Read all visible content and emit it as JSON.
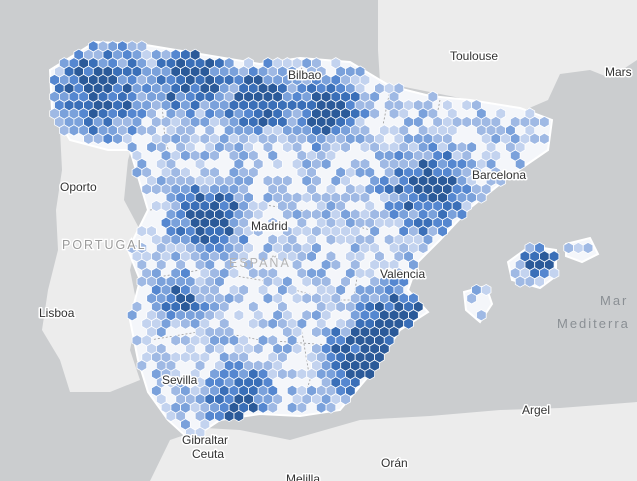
{
  "map": {
    "colors": {
      "water": "#cbcdcf",
      "land": "#ececec",
      "spain_base": "#f4f6fa",
      "border": "#9a9a9a",
      "hex_scale": [
        "#e8eef9",
        "#c3d3ef",
        "#9fb9e4",
        "#7aa1db",
        "#5587d0",
        "#3a6fb8",
        "#2b5a99"
      ]
    },
    "labels": {
      "toulouse": "Toulouse",
      "marseille": "Mars",
      "bilbao": "Bilbao",
      "barcelona": "Barcelona",
      "oporto": "Oporto",
      "madrid": "Madrid",
      "portugal": "PORTUGAL",
      "espana": "ESPAÑA",
      "valencia": "Valencia",
      "lisboa": "Lisboa",
      "mar": "Mar",
      "mediterraneo": "Mediterra",
      "sevilla": "Sevilla",
      "argel": "Argel",
      "gibraltar": "Gibraltar",
      "ceuta": "Ceuta",
      "oran": "Orán",
      "melilla": "Melilla"
    }
  }
}
